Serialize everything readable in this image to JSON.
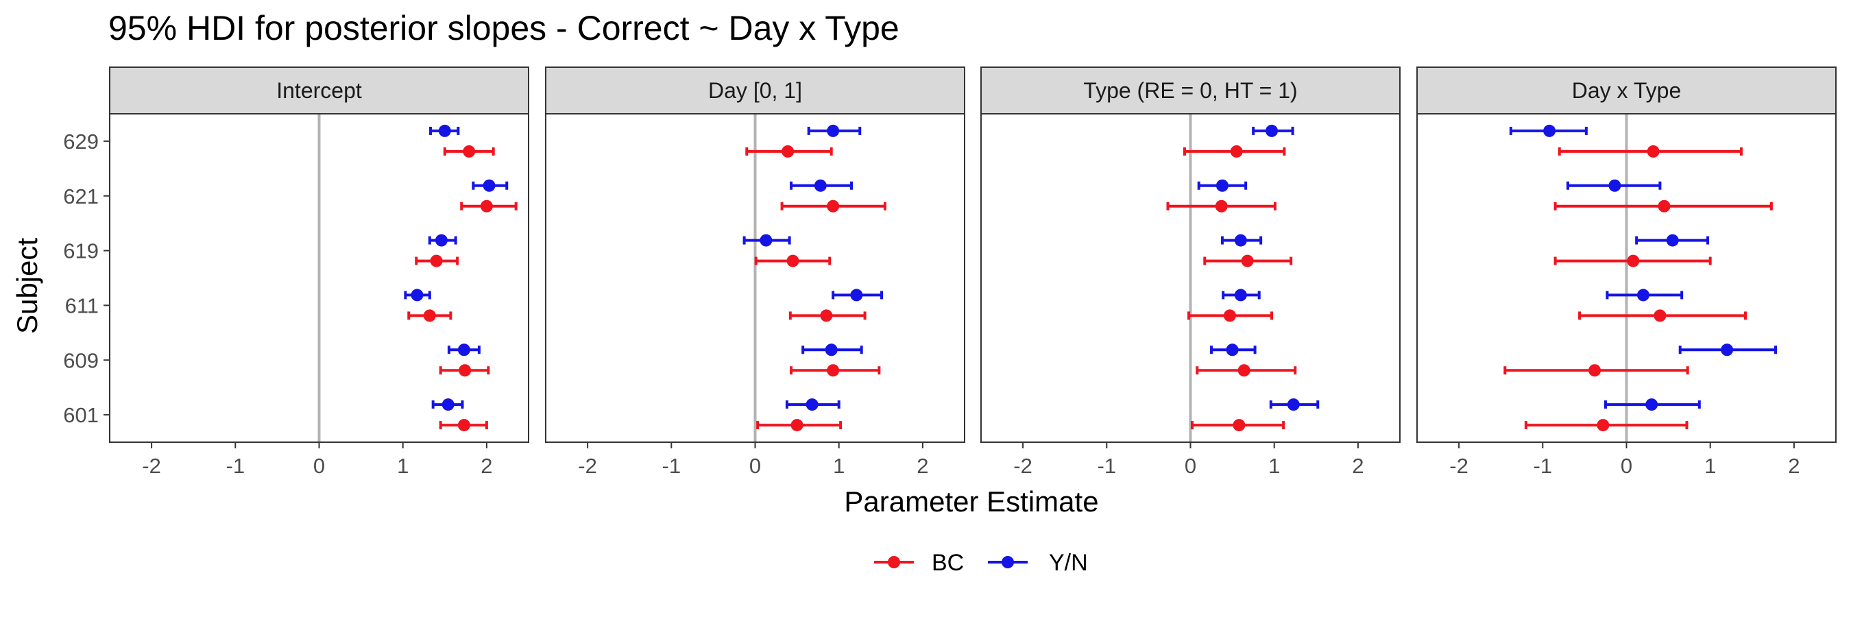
{
  "chart_data": {
    "type": "scatter",
    "subtype": "point-range (faceted)",
    "title": "95% HDI for posterior slopes - Correct ~ Day x Type",
    "xlabel": "Parameter Estimate",
    "ylabel": "Subject",
    "xlim": [
      -2.5,
      2.5
    ],
    "x_ticks": [
      -2,
      -1,
      0,
      1,
      2
    ],
    "x_tick_labels": [
      "-2",
      "-1",
      "0",
      "1",
      "2"
    ],
    "y_categories": [
      "601",
      "609",
      "611",
      "619",
      "621",
      "629"
    ],
    "reference_line": 0,
    "reference_line_color": "#b3b3b3",
    "grid": false,
    "legend_position": "bottom",
    "strip_fill": "#d9d9d9",
    "series": [
      {
        "name": "BC",
        "color": "#f0141e"
      },
      {
        "name": "Y/N",
        "color": "#1414e6"
      }
    ],
    "facets": [
      {
        "label": "Intercept",
        "data": {
          "BC": {
            "601": [
              1.73,
              1.45,
              2.0
            ],
            "609": [
              1.74,
              1.45,
              2.02
            ],
            "611": [
              1.32,
              1.07,
              1.57
            ],
            "619": [
              1.4,
              1.16,
              1.65
            ],
            "621": [
              2.0,
              1.7,
              2.35
            ],
            "629": [
              1.79,
              1.5,
              2.08
            ]
          },
          "Y/N": {
            "601": [
              1.54,
              1.36,
              1.71
            ],
            "609": [
              1.73,
              1.55,
              1.91
            ],
            "611": [
              1.17,
              1.03,
              1.32
            ],
            "619": [
              1.46,
              1.32,
              1.63
            ],
            "621": [
              2.03,
              1.84,
              2.24
            ],
            "629": [
              1.5,
              1.33,
              1.66
            ]
          }
        }
      },
      {
        "label": "Day [0, 1]",
        "data": {
          "BC": {
            "601": [
              0.5,
              0.03,
              1.02
            ],
            "609": [
              0.93,
              0.43,
              1.48
            ],
            "611": [
              0.85,
              0.42,
              1.31
            ],
            "619": [
              0.45,
              0.01,
              0.89
            ],
            "621": [
              0.93,
              0.32,
              1.55
            ],
            "629": [
              0.39,
              -0.1,
              0.91
            ]
          },
          "Y/N": {
            "601": [
              0.68,
              0.38,
              1.0
            ],
            "609": [
              0.91,
              0.57,
              1.27
            ],
            "611": [
              1.21,
              0.93,
              1.51
            ],
            "619": [
              0.13,
              -0.13,
              0.41
            ],
            "621": [
              0.78,
              0.43,
              1.15
            ],
            "629": [
              0.93,
              0.64,
              1.25
            ]
          }
        }
      },
      {
        "label": "Type (RE = 0, HT = 1)",
        "data": {
          "BC": {
            "601": [
              0.58,
              0.02,
              1.11
            ],
            "609": [
              0.64,
              0.08,
              1.25
            ],
            "611": [
              0.47,
              -0.02,
              0.97
            ],
            "619": [
              0.68,
              0.17,
              1.2
            ],
            "621": [
              0.37,
              -0.27,
              1.01
            ],
            "629": [
              0.55,
              -0.07,
              1.12
            ]
          },
          "Y/N": {
            "601": [
              1.23,
              0.96,
              1.52
            ],
            "609": [
              0.5,
              0.25,
              0.77
            ],
            "611": [
              0.6,
              0.39,
              0.82
            ],
            "619": [
              0.6,
              0.38,
              0.84
            ],
            "621": [
              0.38,
              0.1,
              0.66
            ],
            "629": [
              0.97,
              0.75,
              1.22
            ]
          }
        }
      },
      {
        "label": "Day x Type",
        "data": {
          "BC": {
            "601": [
              -0.28,
              -1.2,
              0.72
            ],
            "609": [
              -0.38,
              -1.45,
              0.73
            ],
            "611": [
              0.4,
              -0.56,
              1.42
            ],
            "619": [
              0.08,
              -0.85,
              1.0
            ],
            "621": [
              0.45,
              -0.85,
              1.73
            ],
            "629": [
              0.32,
              -0.8,
              1.37
            ]
          },
          "Y/N": {
            "601": [
              0.3,
              -0.25,
              0.87
            ],
            "609": [
              1.2,
              0.64,
              1.78
            ],
            "611": [
              0.2,
              -0.23,
              0.66
            ],
            "619": [
              0.55,
              0.12,
              0.97
            ],
            "621": [
              -0.14,
              -0.7,
              0.4
            ],
            "629": [
              -0.92,
              -1.38,
              -0.48
            ]
          }
        }
      }
    ]
  }
}
